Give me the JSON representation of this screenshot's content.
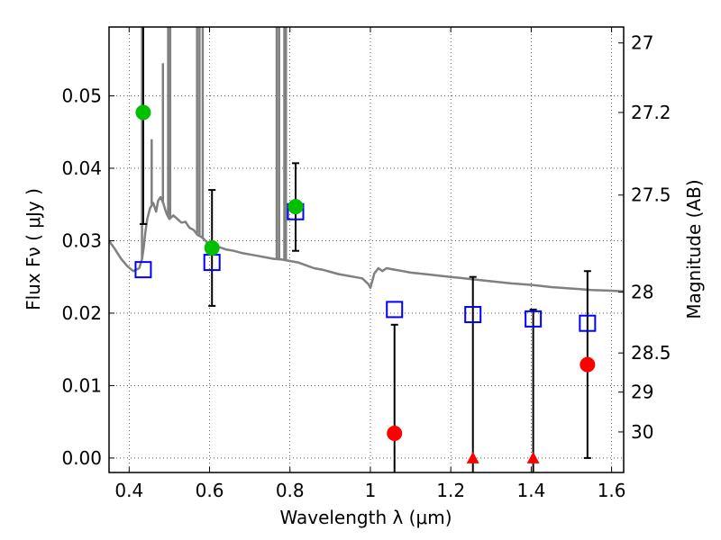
{
  "chart_data": {
    "type": "scatter",
    "xlabel": "Wavelength  λ (μm)",
    "ylabel": "Flux  Fν  ( μJy )",
    "y2label": "Magnitude (AB)",
    "xlim": [
      0.35,
      1.63
    ],
    "ylim": [
      -0.002,
      0.0595
    ],
    "grid": true,
    "x_ticks": [
      {
        "value": 0.4,
        "label": "0.4"
      },
      {
        "value": 0.6,
        "label": "0.6"
      },
      {
        "value": 0.8,
        "label": "0.8"
      },
      {
        "value": 1.0,
        "label": "1"
      },
      {
        "value": 1.2,
        "label": "1.2"
      },
      {
        "value": 1.4,
        "label": "1.4"
      },
      {
        "value": 1.6,
        "label": "1.6"
      }
    ],
    "y_ticks": [
      {
        "value": 0.0,
        "label": "0.00"
      },
      {
        "value": 0.01,
        "label": "0.01"
      },
      {
        "value": 0.02,
        "label": "0.02"
      },
      {
        "value": 0.03,
        "label": "0.03"
      },
      {
        "value": 0.04,
        "label": "0.04"
      },
      {
        "value": 0.05,
        "label": "0.05"
      }
    ],
    "y2_ticks": [
      {
        "flux": 0.0573,
        "label": "27"
      },
      {
        "flux": 0.0477,
        "label": "27.2"
      },
      {
        "flux": 0.0363,
        "label": "27.5"
      },
      {
        "flux": 0.0229,
        "label": "28"
      },
      {
        "flux": 0.0145,
        "label": "28.5"
      },
      {
        "flux": 0.0091,
        "label": "29"
      },
      {
        "flux": 0.0036,
        "label": "30"
      }
    ],
    "model_spectrum": {
      "color": "#808080",
      "points": [
        [
          0.35,
          0.03
        ],
        [
          0.365,
          0.0288
        ],
        [
          0.38,
          0.0275
        ],
        [
          0.395,
          0.0265
        ],
        [
          0.41,
          0.0258
        ],
        [
          0.425,
          0.0262
        ],
        [
          0.432,
          0.0275
        ],
        [
          0.436,
          0.029
        ],
        [
          0.44,
          0.031
        ],
        [
          0.445,
          0.033
        ],
        [
          0.452,
          0.0345
        ],
        [
          0.46,
          0.0352
        ],
        [
          0.467,
          0.034
        ],
        [
          0.472,
          0.0355
        ],
        [
          0.478,
          0.036
        ],
        [
          0.485,
          0.0352
        ],
        [
          0.49,
          0.0342
        ],
        [
          0.495,
          0.0335
        ],
        [
          0.5,
          0.033
        ],
        [
          0.51,
          0.0335
        ],
        [
          0.52,
          0.033
        ],
        [
          0.53,
          0.0325
        ],
        [
          0.54,
          0.0326
        ],
        [
          0.55,
          0.0318
        ],
        [
          0.56,
          0.0315
        ],
        [
          0.57,
          0.0308
        ],
        [
          0.58,
          0.0305
        ],
        [
          0.59,
          0.03
        ],
        [
          0.6,
          0.0293
        ],
        [
          0.62,
          0.0292
        ],
        [
          0.64,
          0.0288
        ],
        [
          0.66,
          0.0286
        ],
        [
          0.68,
          0.0283
        ],
        [
          0.7,
          0.0281
        ],
        [
          0.72,
          0.0279
        ],
        [
          0.74,
          0.0277
        ],
        [
          0.76,
          0.0275
        ],
        [
          0.78,
          0.0274
        ],
        [
          0.8,
          0.0272
        ],
        [
          0.82,
          0.027
        ],
        [
          0.84,
          0.0266
        ],
        [
          0.86,
          0.0262
        ],
        [
          0.88,
          0.026
        ],
        [
          0.9,
          0.0257
        ],
        [
          0.92,
          0.0254
        ],
        [
          0.94,
          0.0252
        ],
        [
          0.96,
          0.025
        ],
        [
          0.98,
          0.0248
        ],
        [
          0.995,
          0.024
        ],
        [
          1.0,
          0.0235
        ],
        [
          1.01,
          0.0255
        ],
        [
          1.02,
          0.0262
        ],
        [
          1.03,
          0.0258
        ],
        [
          1.04,
          0.0262
        ],
        [
          1.06,
          0.026
        ],
        [
          1.08,
          0.0258
        ],
        [
          1.1,
          0.0256
        ],
        [
          1.15,
          0.0253
        ],
        [
          1.2,
          0.025
        ],
        [
          1.25,
          0.0247
        ],
        [
          1.3,
          0.0244
        ],
        [
          1.35,
          0.0241
        ],
        [
          1.4,
          0.0239
        ],
        [
          1.45,
          0.0236
        ],
        [
          1.5,
          0.0234
        ],
        [
          1.55,
          0.0232
        ],
        [
          1.6,
          0.0231
        ],
        [
          1.63,
          0.023
        ]
      ],
      "emission_lines": [
        {
          "x": 0.432,
          "base": 0.0275,
          "top": 0.0595
        },
        {
          "x": 0.456,
          "base": 0.035,
          "top": 0.044
        },
        {
          "x": 0.484,
          "base": 0.0352,
          "top": 0.0545
        },
        {
          "x": 0.497,
          "base": 0.0335,
          "top": 0.0595
        },
        {
          "x": 0.502,
          "base": 0.033,
          "top": 0.0595
        },
        {
          "x": 0.569,
          "base": 0.031,
          "top": 0.0595
        },
        {
          "x": 0.575,
          "base": 0.0308,
          "top": 0.0595
        },
        {
          "x": 0.583,
          "base": 0.0304,
          "top": 0.0595
        },
        {
          "x": 0.767,
          "base": 0.0275,
          "top": 0.0595
        },
        {
          "x": 0.773,
          "base": 0.0275,
          "top": 0.0595
        },
        {
          "x": 0.786,
          "base": 0.0274,
          "top": 0.0595
        },
        {
          "x": 0.79,
          "base": 0.0274,
          "top": 0.0595
        }
      ]
    },
    "model_photometry": {
      "color": "#0000ff",
      "points": [
        [
          0.435,
          0.026
        ],
        [
          0.606,
          0.027
        ],
        [
          0.814,
          0.034
        ],
        [
          1.06,
          0.0205
        ],
        [
          1.255,
          0.0198
        ],
        [
          1.405,
          0.0192
        ],
        [
          1.54,
          0.0186
        ]
      ]
    },
    "detections": {
      "color": "#00c000",
      "points": [
        {
          "x": 0.435,
          "y": 0.0477,
          "lo": 0.0323,
          "hi": 0.0595
        },
        {
          "x": 0.606,
          "y": 0.029,
          "lo": 0.021,
          "hi": 0.037
        },
        {
          "x": 0.814,
          "y": 0.0347,
          "lo": 0.0286,
          "hi": 0.0407
        }
      ]
    },
    "non_detections": {
      "color": "#ff0000",
      "points": [
        {
          "x": 1.06,
          "y": 0.0034,
          "lo": -0.002,
          "hi": 0.0184,
          "marker": "circle"
        },
        {
          "x": 1.255,
          "y": 0.0,
          "lo": -0.002,
          "hi": 0.025,
          "marker": "triangle"
        },
        {
          "x": 1.405,
          "y": 0.0,
          "lo": -0.002,
          "hi": 0.0205,
          "marker": "triangle"
        },
        {
          "x": 1.54,
          "y": 0.0129,
          "lo": 0.0,
          "hi": 0.0258,
          "marker": "circle"
        }
      ]
    }
  }
}
